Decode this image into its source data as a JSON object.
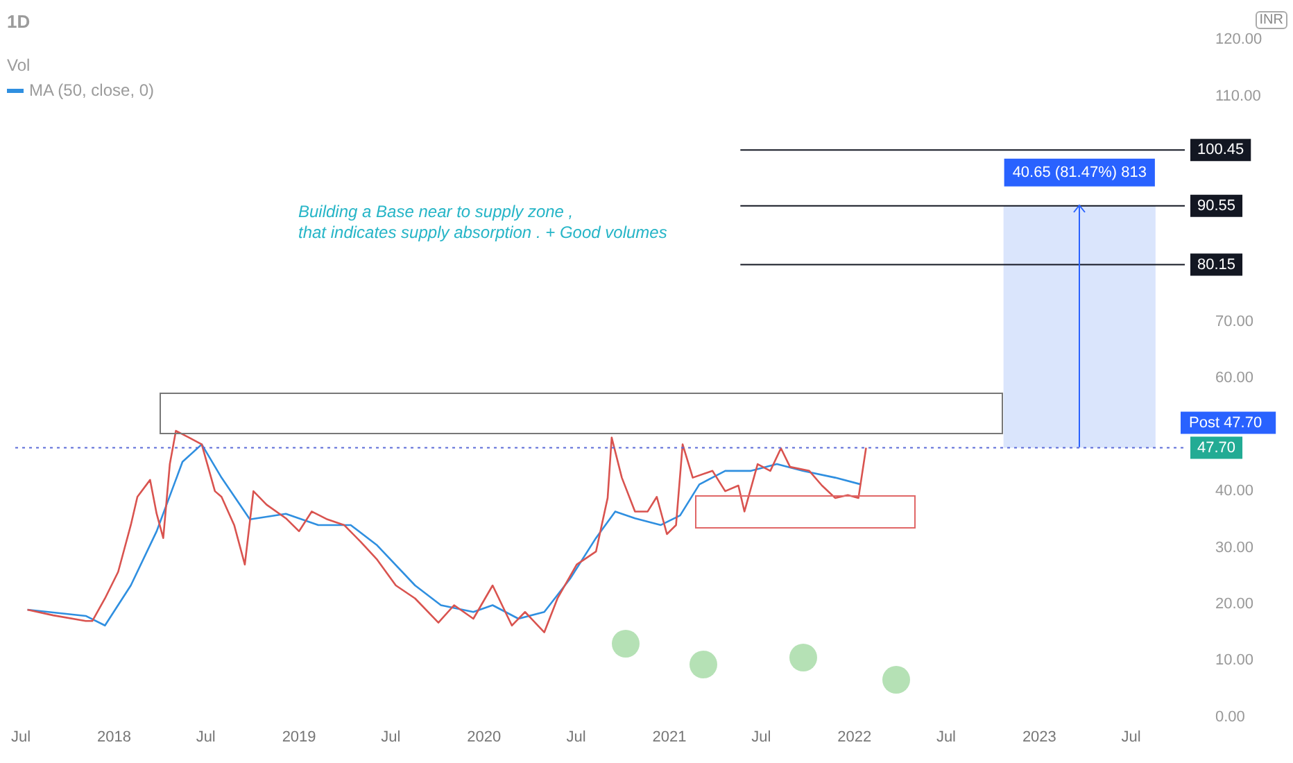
{
  "chart_data": {
    "type": "line",
    "title": "1D",
    "annotations": [
      "Building a Base near to supply zone ,",
      "that indicates supply absorption . + Good volumes",
      "40.65 (81.47%) 813",
      "Vol",
      "Post 47.70"
    ],
    "series": [
      {
        "color": "#d9534f",
        "x": [
          "2017-07-14",
          "2017-09-03",
          "2017-11-06",
          "2017-11-19",
          "2017-12-14",
          "2018-01-09",
          "2018-02-03",
          "2018-02-16",
          "2018-03-13",
          "2018-03-26",
          "2018-04-08",
          "2018-04-21",
          "2018-05-03",
          "2018-05-29",
          "2018-06-23",
          "2018-07-19",
          "2018-08-01",
          "2018-08-26",
          "2018-09-16",
          "2018-10-03",
          "2018-10-29",
          "2018-12-06",
          "2019-01-01",
          "2019-01-26",
          "2019-02-26",
          "2019-03-31",
          "2019-05-03",
          "2019-06-03",
          "2019-07-11",
          "2019-08-18",
          "2019-10-03",
          "2019-11-03",
          "2019-12-11",
          "2020-01-18",
          "2020-02-25",
          "2020-03-22",
          "2020-04-29",
          "2020-05-25",
          "2020-07-02",
          "2020-08-09",
          "2020-09-01",
          "2020-09-09",
          "2020-09-29",
          "2020-10-25",
          "2020-11-19",
          "2020-12-07",
          "2020-12-27",
          "2021-01-14",
          "2021-01-27",
          "2021-02-16",
          "2021-03-27",
          "2021-04-21",
          "2021-05-17",
          "2021-05-29",
          "2021-06-24",
          "2021-07-19",
          "2021-08-09",
          "2021-08-27",
          "2021-10-04",
          "2021-10-29",
          "2021-11-24",
          "2021-12-19",
          "2022-01-09",
          "2022-01-24"
        ],
        "values": [
          19,
          18,
          17,
          17,
          21,
          25.7,
          34,
          39,
          42,
          36,
          31.7,
          44.8,
          50.7,
          49.5,
          48.3,
          40,
          39,
          34,
          27,
          40,
          37.6,
          35.2,
          32.9,
          36.4,
          35,
          34,
          31,
          28,
          23.3,
          21,
          16.7,
          19.8,
          17.4,
          23.3,
          16.2,
          18.6,
          15,
          21,
          27,
          29.3,
          38.8,
          49.5,
          42.4,
          36.4,
          36.4,
          39,
          32.4,
          34,
          48.3,
          42.4,
          43.6,
          40,
          41,
          36.4,
          44.8,
          43.6,
          47.6,
          44.3,
          43.6,
          41,
          38.8,
          39.3,
          38.8,
          47.7
        ]
      },
      {
        "name": "MA (50, close, 0)",
        "color": "#2f8fe0",
        "x": [
          "2017-07-14",
          "2017-11-06",
          "2017-12-14",
          "2018-02-03",
          "2018-03-26",
          "2018-05-16",
          "2018-06-23",
          "2018-08-01",
          "2018-09-26",
          "2018-12-06",
          "2019-02-08",
          "2019-04-13",
          "2019-06-03",
          "2019-08-18",
          "2019-10-08",
          "2019-12-11",
          "2020-01-18",
          "2020-03-09",
          "2020-04-29",
          "2020-06-19",
          "2020-08-09",
          "2020-09-16",
          "2020-10-25",
          "2020-12-15",
          "2021-01-22",
          "2021-03-01",
          "2021-04-21",
          "2021-06-11",
          "2021-08-01",
          "2021-09-21",
          "2021-11-24",
          "2022-01-14"
        ],
        "values": [
          19,
          17.9,
          16.2,
          23.3,
          32.9,
          45.2,
          48.3,
          42.4,
          35,
          36,
          34,
          34,
          30.5,
          23.3,
          19.8,
          18.6,
          19.8,
          17.4,
          18.6,
          24.5,
          31.7,
          36.4,
          35.2,
          34,
          35.7,
          41.2,
          43.6,
          43.6,
          44.8,
          43.6,
          42.4,
          41.2
        ]
      }
    ],
    "xlim": [
      "2017-06-20",
      "2023-10-15"
    ],
    "xticks": [
      {
        "value": "2017-07-01",
        "label": "Jul"
      },
      {
        "value": "2018-01-01",
        "label": "2018"
      },
      {
        "value": "2018-07-01",
        "label": "Jul"
      },
      {
        "value": "2019-01-01",
        "label": "2019"
      },
      {
        "value": "2019-07-01",
        "label": "Jul"
      },
      {
        "value": "2020-01-01",
        "label": "2020"
      },
      {
        "value": "2020-07-01",
        "label": "Jul"
      },
      {
        "value": "2021-01-01",
        "label": "2021"
      },
      {
        "value": "2021-07-01",
        "label": "Jul"
      },
      {
        "value": "2022-01-01",
        "label": "2022"
      },
      {
        "value": "2022-07-01",
        "label": "Jul"
      },
      {
        "value": "2023-01-01",
        "label": "2023"
      },
      {
        "value": "2023-07-01",
        "label": "Jul"
      }
    ],
    "ylim": [
      0,
      120
    ],
    "yticks": [
      {
        "value": 0,
        "label": "0.00"
      },
      {
        "value": 10,
        "label": "10.00"
      },
      {
        "value": 20,
        "label": "20.00"
      },
      {
        "value": 30,
        "label": "30.00"
      },
      {
        "value": 40,
        "label": "40.00"
      },
      {
        "value": 60,
        "label": "60.00"
      },
      {
        "value": 70,
        "label": "70.00"
      },
      {
        "value": 110,
        "label": "110.00"
      },
      {
        "value": 120,
        "label": "120.00"
      }
    ],
    "ylabel": "INR",
    "ref_lines": [
      {
        "axis": "y",
        "value": 100.45,
        "label": "100.45",
        "color": "#131722",
        "line_style": "solid"
      },
      {
        "axis": "y",
        "value": 90.55,
        "label": "90.55",
        "color": "#131722",
        "line_style": "solid"
      },
      {
        "axis": "y",
        "value": 80.15,
        "label": "80.15",
        "color": "#131722",
        "line_style": "solid"
      },
      {
        "axis": "y",
        "value": 47.7,
        "label": "47.70",
        "color": "#5b6bd8",
        "line_style": "dotted"
      }
    ],
    "bands": [
      {
        "axis": "y",
        "from": 47.7,
        "to": 90.55,
        "color": "#d3e0fb"
      }
    ],
    "grid": false,
    "legend": "top left",
    "marker": "none",
    "line_style": "solid"
  }
}
